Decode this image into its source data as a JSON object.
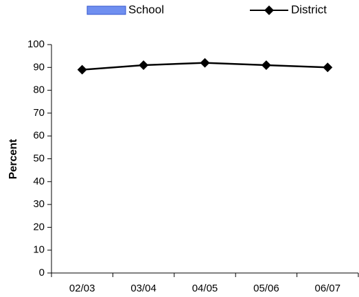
{
  "chart_data": {
    "type": "line",
    "y_label": "Percent",
    "categories": [
      "02/03",
      "03/04",
      "04/05",
      "05/06",
      "06/07"
    ],
    "series": [
      {
        "name": "School",
        "type": "bar",
        "color": "#6f8ff0",
        "values": [
          null,
          null,
          null,
          null,
          null
        ]
      },
      {
        "name": "District",
        "type": "line",
        "color": "#000000",
        "values": [
          89,
          91,
          92,
          91,
          90
        ]
      }
    ],
    "ylim": [
      0,
      100
    ],
    "yticks": [
      0,
      10,
      20,
      30,
      40,
      50,
      60,
      70,
      80,
      90,
      100
    ],
    "legend": "top"
  }
}
